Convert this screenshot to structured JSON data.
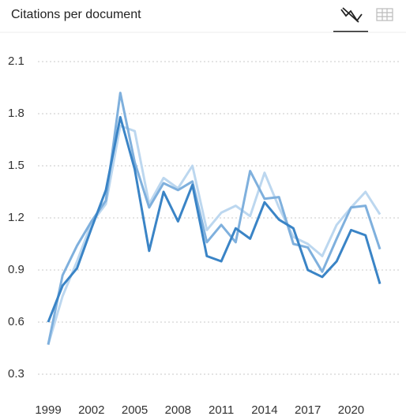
{
  "chart_data": {
    "type": "line",
    "title": "Citations per document",
    "x": [
      1999,
      2000,
      2001,
      2002,
      2003,
      2004,
      2005,
      2006,
      2007,
      2008,
      2009,
      2010,
      2011,
      2012,
      2013,
      2014,
      2015,
      2016,
      2017,
      2018,
      2019,
      2020,
      2021,
      2022
    ],
    "xlim": [
      1999,
      2022
    ],
    "xticks": [
      1999,
      2002,
      2005,
      2008,
      2011,
      2014,
      2017,
      2020
    ],
    "ylim": [
      0.3,
      2.1
    ],
    "yticks": [
      0.3,
      0.6,
      0.9,
      1.2,
      1.5,
      1.8,
      2.1
    ],
    "grid": true,
    "series": [
      {
        "color": "#bcd7ef",
        "values": [
          0.47,
          0.75,
          0.95,
          1.17,
          1.28,
          1.73,
          1.7,
          1.28,
          1.43,
          1.37,
          1.5,
          1.13,
          1.23,
          1.27,
          1.21,
          1.46,
          1.26,
          1.09,
          1.05,
          0.98,
          1.16,
          1.26,
          1.35,
          1.22
        ]
      },
      {
        "color": "#7fb0dd",
        "values": [
          0.47,
          0.87,
          1.04,
          1.18,
          1.3,
          1.92,
          1.52,
          1.26,
          1.4,
          1.36,
          1.41,
          1.06,
          1.16,
          1.06,
          1.47,
          1.31,
          1.32,
          1.05,
          1.03,
          0.89,
          1.08,
          1.26,
          1.27,
          1.02
        ]
      },
      {
        "color": "#3a84c6",
        "values": [
          0.6,
          0.81,
          0.91,
          1.14,
          1.36,
          1.78,
          1.48,
          1.01,
          1.35,
          1.18,
          1.39,
          0.98,
          0.95,
          1.14,
          1.08,
          1.29,
          1.19,
          1.14,
          0.9,
          0.86,
          0.95,
          1.13,
          1.1,
          0.82
        ]
      }
    ]
  }
}
